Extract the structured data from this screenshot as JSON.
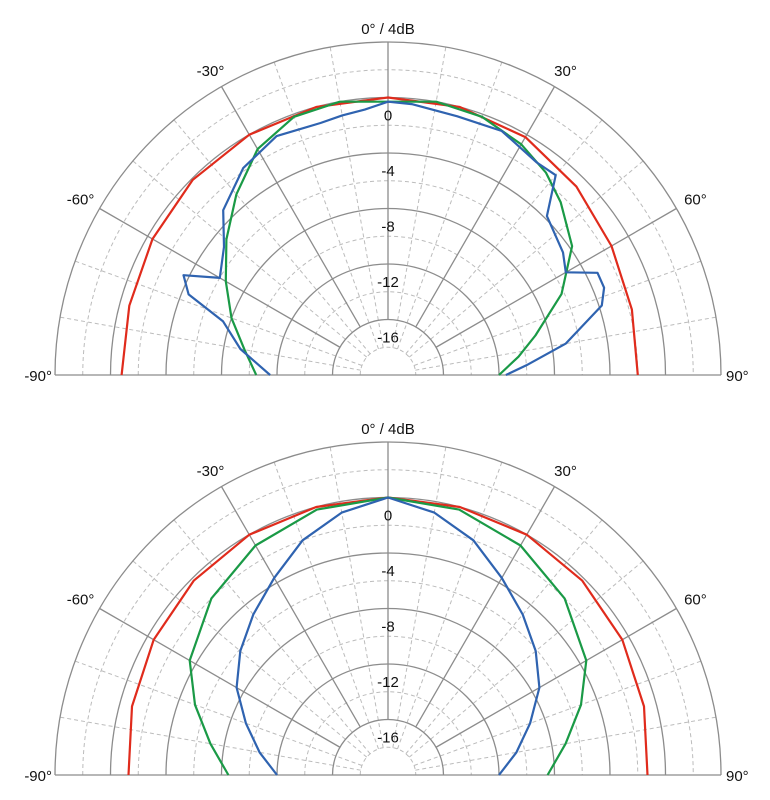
{
  "chart_data": [
    {
      "type": "polar",
      "title": "0° / 4dB",
      "theta_range_deg": [
        -90,
        90
      ],
      "r_range_db": [
        -20,
        4
      ],
      "angle_tick_labels": [
        "-90°",
        "-60°",
        "-30°",
        "30°",
        "60°",
        "90°"
      ],
      "radial_tick_labels": [
        "0",
        "-4",
        "-8",
        "-12",
        "-16"
      ],
      "grid": true,
      "series": [
        {
          "color": "#e02b1c",
          "points": [
            [
              -90,
              -0.8
            ],
            [
              -75,
              -0.7
            ],
            [
              -60,
              -0.4
            ],
            [
              -45,
              -0.1
            ],
            [
              -30,
              0
            ],
            [
              -15,
              0
            ],
            [
              0,
              0
            ],
            [
              15,
              0
            ],
            [
              30,
              -0.2
            ],
            [
              45,
              -0.8
            ],
            [
              60,
              -1.4
            ],
            [
              75,
              -1.8
            ],
            [
              90,
              -2.0
            ]
          ]
        },
        {
          "color": "#1a9a46",
          "points": [
            [
              -90,
              -10.5
            ],
            [
              -80,
              -9.5
            ],
            [
              -70,
              -8.0
            ],
            [
              -60,
              -6.5
            ],
            [
              -50,
              -4.8
            ],
            [
              -40,
              -3.0
            ],
            [
              -30,
              -1.2
            ],
            [
              -20,
              -0.2
            ],
            [
              -10,
              0
            ],
            [
              0,
              -0.3
            ],
            [
              10,
              0
            ],
            [
              20,
              -0.2
            ],
            [
              30,
              -0.8
            ],
            [
              38,
              -1.5
            ],
            [
              45,
              -2.4
            ],
            [
              55,
              -3.8
            ],
            [
              65,
              -6.2
            ],
            [
              75,
              -9.0
            ],
            [
              82,
              -10.5
            ],
            [
              90,
              -12.0
            ]
          ]
        },
        {
          "color": "#2f63b0",
          "points": [
            [
              -90,
              -11.5
            ],
            [
              -80,
              -9.2
            ],
            [
              -72,
              -7.5
            ],
            [
              -68,
              -4.5
            ],
            [
              -64,
              -3.6
            ],
            [
              -60,
              -6.0
            ],
            [
              -52,
              -5.0
            ],
            [
              -45,
              -3.2
            ],
            [
              -35,
              -1.8
            ],
            [
              -25,
              -1.0
            ],
            [
              -15,
              -1.2
            ],
            [
              -10,
              -1.0
            ],
            [
              -5,
              -0.8
            ],
            [
              0,
              -0.3
            ],
            [
              5,
              -0.4
            ],
            [
              15,
              -0.7
            ],
            [
              25,
              -0.6
            ],
            [
              35,
              -1.3
            ],
            [
              40,
              -1.2
            ],
            [
              45,
              -3.8
            ],
            [
              55,
              -4.6
            ],
            [
              60,
              -5.2
            ],
            [
              64,
              -3.2
            ],
            [
              68,
              -3.2
            ],
            [
              72,
              -3.8
            ],
            [
              80,
              -7.0
            ],
            [
              86,
              -10.0
            ],
            [
              90,
              -11.5
            ]
          ]
        }
      ]
    },
    {
      "type": "polar",
      "title": "0° / 4dB",
      "theta_range_deg": [
        -90,
        90
      ],
      "r_range_db": [
        -20,
        4
      ],
      "angle_tick_labels": [
        "-90°",
        "-60°",
        "-30°",
        "30°",
        "60°",
        "90°"
      ],
      "radial_tick_labels": [
        "0",
        "-4",
        "-8",
        "-12",
        "-16"
      ],
      "grid": true,
      "series": [
        {
          "color": "#e02b1c",
          "points": [
            [
              -90,
              -1.3
            ],
            [
              -75,
              -0.9
            ],
            [
              -60,
              -0.5
            ],
            [
              -45,
              -0.2
            ],
            [
              -30,
              0
            ],
            [
              -15,
              0
            ],
            [
              0,
              0
            ],
            [
              15,
              0
            ],
            [
              30,
              0
            ],
            [
              45,
              -0.2
            ],
            [
              60,
              -0.5
            ],
            [
              75,
              -0.9
            ],
            [
              90,
              -1.3
            ]
          ]
        },
        {
          "color": "#1a9a46",
          "points": [
            [
              -90,
              -8.5
            ],
            [
              -80,
              -7.0
            ],
            [
              -70,
              -5.2
            ],
            [
              -60,
              -3.5
            ],
            [
              -45,
              -2.0
            ],
            [
              -30,
              -0.9
            ],
            [
              -15,
              -0.2
            ],
            [
              0,
              0
            ],
            [
              15,
              -0.2
            ],
            [
              30,
              -0.9
            ],
            [
              45,
              -2.0
            ],
            [
              60,
              -3.5
            ],
            [
              70,
              -5.2
            ],
            [
              80,
              -7.0
            ],
            [
              90,
              -8.5
            ]
          ]
        },
        {
          "color": "#2f63b0",
          "points": [
            [
              -90,
              -12.0
            ],
            [
              -80,
              -10.6
            ],
            [
              -70,
              -9.1
            ],
            [
              -60,
              -7.4
            ],
            [
              -50,
              -6.1
            ],
            [
              -40,
              -4.9
            ],
            [
              -30,
              -3.6
            ],
            [
              -20,
              -2.0
            ],
            [
              -10,
              -0.8
            ],
            [
              0,
              0
            ],
            [
              10,
              -0.8
            ],
            [
              20,
              -2.0
            ],
            [
              30,
              -3.6
            ],
            [
              40,
              -4.9
            ],
            [
              50,
              -6.1
            ],
            [
              60,
              -7.4
            ],
            [
              70,
              -9.1
            ],
            [
              80,
              -10.6
            ],
            [
              90,
              -12.0
            ]
          ]
        }
      ]
    }
  ]
}
